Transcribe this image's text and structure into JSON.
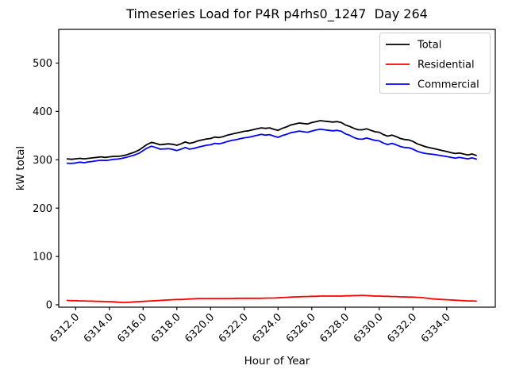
{
  "chart_data": {
    "type": "line",
    "title": "Timeseries Load for P4R p4rhs0_1247  Day 264",
    "xlabel": "Hour of Year",
    "ylabel": "kW total",
    "x_start": 6311.5,
    "x_step": 0.25,
    "x_end": 6335.75,
    "x_ticks": [
      "6312.0",
      "6314.0",
      "6316.0",
      "6318.0",
      "6320.0",
      "6322.0",
      "6324.0",
      "6326.0",
      "6328.0",
      "6330.0",
      "6332.0",
      "6334.0"
    ],
    "y_ticks": [
      "0",
      "100",
      "200",
      "300",
      "400",
      "500"
    ],
    "grid": false,
    "legend_position": "upper right",
    "axis_color": "#000000",
    "legend_border_color": "#cccccc",
    "series": [
      {
        "name": "Total",
        "color": "#000000",
        "values": [
          302,
          301,
          302,
          303,
          302,
          303,
          304,
          305,
          306,
          305,
          306,
          307,
          307,
          308,
          310,
          313,
          316,
          320,
          326,
          332,
          336,
          334,
          331,
          332,
          333,
          332,
          330,
          333,
          337,
          334,
          336,
          339,
          341,
          343,
          344,
          347,
          346,
          348,
          351,
          353,
          355,
          357,
          359,
          360,
          362,
          364,
          366,
          365,
          366,
          363,
          361,
          365,
          368,
          372,
          374,
          376,
          375,
          374,
          377,
          379,
          381,
          380,
          379,
          378,
          379,
          377,
          372,
          369,
          365,
          362,
          362,
          364,
          361,
          358,
          357,
          352,
          349,
          351,
          348,
          344,
          342,
          341,
          338,
          333,
          330,
          327,
          325,
          323,
          321,
          319,
          317,
          315,
          313,
          314,
          312,
          310,
          312,
          309
        ]
      },
      {
        "name": "Residential",
        "color": "#ff0000",
        "values": [
          9,
          8.5,
          8.5,
          8,
          8,
          7.5,
          7.5,
          7,
          7,
          6.5,
          6.5,
          6,
          5.5,
          5,
          5,
          5.5,
          6,
          6.5,
          7,
          7.5,
          8,
          8.5,
          9,
          9.5,
          10,
          10.5,
          11,
          11,
          11.5,
          12,
          12.5,
          13,
          13,
          13,
          13,
          13,
          13,
          13,
          13,
          13,
          13.5,
          13.5,
          13.5,
          13.5,
          13.5,
          13.5,
          13.5,
          14,
          14,
          14,
          14.5,
          15,
          15.5,
          16,
          16.5,
          16.5,
          17,
          17,
          17.5,
          17.5,
          18,
          18,
          18,
          18,
          18,
          18,
          18.5,
          18.5,
          19,
          19,
          19.5,
          19,
          18.5,
          18,
          18,
          17.5,
          17.5,
          17,
          17,
          16.5,
          16.5,
          16,
          16,
          15.5,
          15,
          14,
          13,
          12,
          11.5,
          11,
          10.5,
          10,
          9.5,
          9,
          8.5,
          8,
          8,
          7.5
        ]
      },
      {
        "name": "Commercial",
        "color": "#0000ff",
        "values": [
          293,
          292.5,
          293.5,
          295,
          294,
          295.5,
          296.5,
          298,
          299,
          298.5,
          299.5,
          301,
          301.5,
          303,
          305,
          307.5,
          310,
          313.5,
          319,
          324.5,
          328,
          325.5,
          322,
          322.5,
          323,
          321.5,
          319,
          322,
          325.5,
          322,
          323.5,
          326,
          328,
          330,
          331,
          334,
          333,
          335,
          338,
          340,
          341.5,
          343.5,
          345.5,
          346.5,
          348.5,
          350.5,
          352.5,
          351,
          352,
          349,
          346.5,
          350,
          352.5,
          356,
          357.5,
          359.5,
          358,
          357,
          359.5,
          361.5,
          363,
          362,
          361,
          360,
          361,
          359,
          353.5,
          350.5,
          346,
          343,
          342.5,
          345,
          342.5,
          340,
          339,
          334.5,
          331.5,
          334,
          331,
          327.5,
          325.5,
          325,
          322,
          317.5,
          315,
          313,
          312,
          311,
          309.5,
          308,
          306.5,
          305,
          303.5,
          305,
          303.5,
          302,
          304,
          301.5
        ]
      }
    ]
  }
}
